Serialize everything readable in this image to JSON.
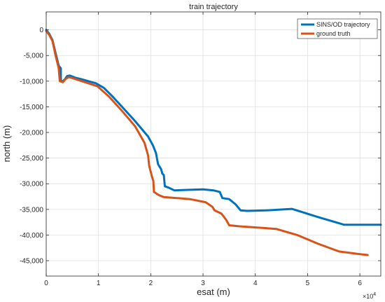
{
  "chart_data": {
    "type": "line",
    "title": "train trajectory",
    "xlabel": "esat (m)",
    "ylabel": "north (m)",
    "x_exponent_label": "×10",
    "x_exponent_power": "4",
    "xlim": [
      0,
      64000
    ],
    "ylim": [
      -48000,
      3500
    ],
    "x_ticks": [
      0,
      10000,
      20000,
      30000,
      40000,
      50000,
      60000
    ],
    "x_tick_labels": [
      "0",
      "1",
      "2",
      "3",
      "4",
      "5",
      "6"
    ],
    "y_ticks": [
      0,
      -5000,
      -10000,
      -15000,
      -20000,
      -25000,
      -30000,
      -35000,
      -40000,
      -45000
    ],
    "y_tick_labels": [
      "0",
      "-5,000",
      "-10,000",
      "-15,000",
      "-20,000",
      "-25,000",
      "-30,000",
      "-35,000",
      "-40,000",
      "-45,000"
    ],
    "grid": true,
    "legend_position": "top-right",
    "series": [
      {
        "name": "SINS/OD trajectory",
        "color": "#0072BD",
        "points": [
          [
            0,
            0
          ],
          [
            600,
            -800
          ],
          [
            1200,
            -2000
          ],
          [
            1800,
            -4500
          ],
          [
            2400,
            -7000
          ],
          [
            2800,
            -7500
          ],
          [
            2800,
            -10000
          ],
          [
            3200,
            -10000
          ],
          [
            3600,
            -9600
          ],
          [
            4000,
            -9000
          ],
          [
            4500,
            -8900
          ],
          [
            5500,
            -9300
          ],
          [
            7000,
            -9700
          ],
          [
            9500,
            -10400
          ],
          [
            11000,
            -11300
          ],
          [
            12500,
            -12800
          ],
          [
            14500,
            -15000
          ],
          [
            17000,
            -17800
          ],
          [
            19500,
            -20800
          ],
          [
            20400,
            -22500
          ],
          [
            21000,
            -24000
          ],
          [
            21400,
            -26200
          ],
          [
            22000,
            -27200
          ],
          [
            22200,
            -28000
          ],
          [
            22500,
            -28300
          ],
          [
            22700,
            -30500
          ],
          [
            23300,
            -30700
          ],
          [
            24500,
            -31300
          ],
          [
            27000,
            -31200
          ],
          [
            30000,
            -31100
          ],
          [
            32000,
            -31300
          ],
          [
            33200,
            -31600
          ],
          [
            33700,
            -32800
          ],
          [
            35000,
            -33000
          ],
          [
            36200,
            -34000
          ],
          [
            37200,
            -35200
          ],
          [
            38500,
            -35300
          ],
          [
            42000,
            -35200
          ],
          [
            47000,
            -34900
          ],
          [
            52000,
            -36500
          ],
          [
            56000,
            -37700
          ],
          [
            57000,
            -38000
          ],
          [
            60000,
            -38000
          ],
          [
            63000,
            -38000
          ],
          [
            64000,
            -38000
          ]
        ]
      },
      {
        "name": "ground truth",
        "color": "#D95319",
        "points": [
          [
            0,
            -200
          ],
          [
            600,
            -1000
          ],
          [
            1200,
            -2200
          ],
          [
            1800,
            -5000
          ],
          [
            2400,
            -7500
          ],
          [
            2600,
            -10000
          ],
          [
            3200,
            -10200
          ],
          [
            3700,
            -9600
          ],
          [
            4300,
            -9200
          ],
          [
            5000,
            -9400
          ],
          [
            6500,
            -9900
          ],
          [
            9800,
            -11000
          ],
          [
            12000,
            -13000
          ],
          [
            14500,
            -15800
          ],
          [
            17000,
            -18800
          ],
          [
            18800,
            -22000
          ],
          [
            19500,
            -24500
          ],
          [
            19700,
            -26500
          ],
          [
            20200,
            -28500
          ],
          [
            20500,
            -29500
          ],
          [
            20600,
            -31600
          ],
          [
            21500,
            -32200
          ],
          [
            22500,
            -32600
          ],
          [
            25000,
            -32800
          ],
          [
            27500,
            -33000
          ],
          [
            30500,
            -33600
          ],
          [
            31800,
            -34500
          ],
          [
            32200,
            -35200
          ],
          [
            33500,
            -35800
          ],
          [
            34400,
            -37000
          ],
          [
            35000,
            -38100
          ],
          [
            37000,
            -38300
          ],
          [
            44000,
            -38800
          ],
          [
            48000,
            -40000
          ],
          [
            52000,
            -41700
          ],
          [
            56000,
            -43200
          ],
          [
            59000,
            -43600
          ],
          [
            61500,
            -43900
          ]
        ]
      }
    ]
  }
}
